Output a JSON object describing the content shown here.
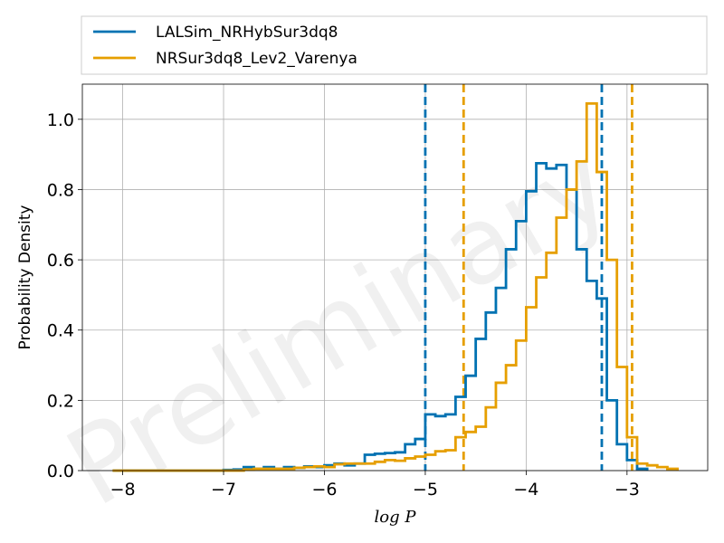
{
  "chart_data": {
    "type": "line",
    "xlabel": "log P",
    "ylabel": "Probability Density",
    "xlim": [
      -8.4,
      -2.2
    ],
    "ylim": [
      0,
      1.1
    ],
    "xticks": [
      -8,
      -7,
      -6,
      -5,
      -4,
      -3
    ],
    "xtick_labels": [
      "−8",
      "−7",
      "−6",
      "−5",
      "−4",
      "−3"
    ],
    "yticks": [
      0.0,
      0.2,
      0.4,
      0.6,
      0.8,
      1.0
    ],
    "ytick_labels": [
      "0.0",
      "0.2",
      "0.4",
      "0.6",
      "0.8",
      "1.0"
    ],
    "grid": true,
    "legend_position": "top-outside",
    "watermark": "Preliminary",
    "series": [
      {
        "name": "LALSim_NRHybSur3dq8",
        "color": "#0072b2",
        "style": "step",
        "edges": [
          -8.1,
          -7.0,
          -6.9,
          -6.8,
          -6.7,
          -6.6,
          -6.5,
          -6.4,
          -6.3,
          -6.2,
          -6.1,
          -6.0,
          -5.9,
          -5.8,
          -5.7,
          -5.6,
          -5.5,
          -5.4,
          -5.3,
          -5.2,
          -5.1,
          -5.0,
          -4.9,
          -4.8,
          -4.7,
          -4.6,
          -4.5,
          -4.4,
          -4.3,
          -4.2,
          -4.1,
          -4.0,
          -3.9,
          -3.8,
          -3.7,
          -3.6,
          -3.5,
          -3.4,
          -3.3,
          -3.2,
          -3.1,
          -3.0,
          -2.9,
          -2.8
        ],
        "values": [
          0.0,
          0.002,
          0.003,
          0.01,
          0.005,
          0.01,
          0.005,
          0.01,
          0.008,
          0.012,
          0.01,
          0.015,
          0.02,
          0.015,
          0.02,
          0.045,
          0.048,
          0.05,
          0.052,
          0.075,
          0.09,
          0.16,
          0.155,
          0.16,
          0.21,
          0.27,
          0.375,
          0.45,
          0.52,
          0.63,
          0.71,
          0.795,
          0.875,
          0.86,
          0.87,
          0.8,
          0.63,
          0.54,
          0.49,
          0.2,
          0.075,
          0.03,
          0.005
        ]
      },
      {
        "name": "NRSur3dq8_Lev2_Varenya",
        "color": "#e69f00",
        "style": "step",
        "edges": [
          -8.1,
          -7.0,
          -6.9,
          -6.8,
          -6.7,
          -6.6,
          -6.5,
          -6.4,
          -6.3,
          -6.2,
          -6.1,
          -6.0,
          -5.9,
          -5.8,
          -5.7,
          -5.6,
          -5.5,
          -5.4,
          -5.3,
          -5.2,
          -5.1,
          -5.0,
          -4.9,
          -4.8,
          -4.7,
          -4.6,
          -4.5,
          -4.4,
          -4.3,
          -4.2,
          -4.1,
          -4.0,
          -3.9,
          -3.8,
          -3.7,
          -3.6,
          -3.5,
          -3.4,
          -3.3,
          -3.2,
          -3.1,
          -3.0,
          -2.9,
          -2.8,
          -2.7,
          -2.6,
          -2.5
        ],
        "values": [
          0.0,
          0.0,
          0.0,
          0.003,
          0.005,
          0.005,
          0.005,
          0.005,
          0.008,
          0.01,
          0.012,
          0.01,
          0.018,
          0.02,
          0.02,
          0.02,
          0.025,
          0.03,
          0.028,
          0.035,
          0.04,
          0.045,
          0.055,
          0.058,
          0.095,
          0.11,
          0.125,
          0.18,
          0.25,
          0.3,
          0.37,
          0.465,
          0.55,
          0.62,
          0.72,
          0.8,
          0.88,
          1.045,
          0.85,
          0.6,
          0.295,
          0.095,
          0.02,
          0.015,
          0.01,
          0.005
        ]
      }
    ],
    "vlines": [
      {
        "x": -5.0,
        "color": "#0072b2",
        "style": "dashed"
      },
      {
        "x": -3.25,
        "color": "#0072b2",
        "style": "dashed"
      },
      {
        "x": -4.62,
        "color": "#e69f00",
        "style": "dashed"
      },
      {
        "x": -2.95,
        "color": "#e69f00",
        "style": "dashed"
      }
    ]
  }
}
